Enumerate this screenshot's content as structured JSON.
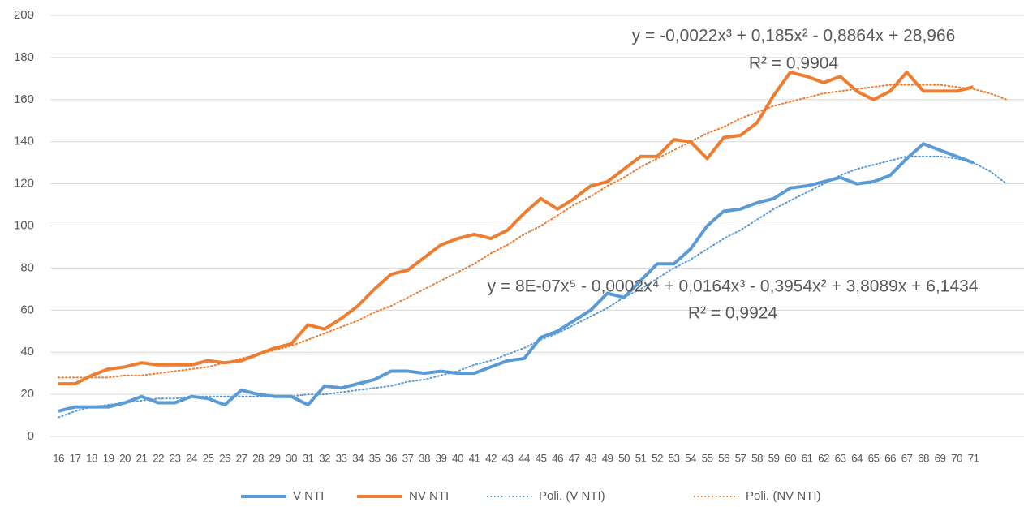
{
  "chart_data": {
    "type": "line",
    "categories": [
      "16",
      "17",
      "18",
      "19",
      "20",
      "21",
      "22",
      "23",
      "24",
      "25",
      "26",
      "27",
      "28",
      "29",
      "30",
      "31",
      "32",
      "33",
      "34",
      "35",
      "36",
      "37",
      "38",
      "39",
      "40",
      "41",
      "42",
      "43",
      "44",
      "45",
      "46",
      "47",
      "48",
      "49",
      "50",
      "51",
      "52",
      "53",
      "54",
      "55",
      "56",
      "57",
      "58",
      "59",
      "60",
      "61",
      "62",
      "63",
      "64",
      "65",
      "66",
      "67",
      "68",
      "69",
      "70",
      "71",
      null,
      null
    ],
    "series": [
      {
        "name": "V NTI",
        "color": "#5b9bd5",
        "style": "solid",
        "values": [
          12,
          14,
          14,
          14,
          16,
          19,
          16,
          16,
          19,
          18,
          15,
          22,
          20,
          19,
          19,
          15,
          24,
          23,
          25,
          27,
          31,
          31,
          30,
          31,
          30,
          30,
          33,
          36,
          37,
          47,
          50,
          55,
          60,
          68,
          66,
          74,
          82,
          82,
          89,
          100,
          107,
          108,
          111,
          113,
          118,
          119,
          121,
          123,
          120,
          121,
          124,
          132,
          139,
          136,
          133,
          130,
          null,
          null
        ]
      },
      {
        "name": "NV NTI",
        "color": "#ed7d31",
        "style": "solid",
        "values": [
          25,
          25,
          29,
          32,
          33,
          35,
          34,
          34,
          34,
          36,
          35,
          36,
          39,
          42,
          44,
          53,
          51,
          56,
          62,
          70,
          77,
          79,
          85,
          91,
          94,
          96,
          94,
          98,
          106,
          113,
          108,
          113,
          119,
          121,
          127,
          133,
          133,
          141,
          140,
          132,
          142,
          143,
          149,
          162,
          173,
          171,
          168,
          171,
          164,
          160,
          164,
          173,
          164,
          164,
          164,
          166,
          null,
          null
        ]
      },
      {
        "name": "Poli. (V NTI)",
        "color": "#5b9bd5",
        "style": "dotted",
        "values": [
          9,
          12,
          14,
          15,
          16,
          17,
          18,
          18,
          19,
          19,
          19,
          19,
          19,
          19,
          19,
          20,
          20,
          21,
          22,
          23,
          24,
          26,
          27,
          29,
          31,
          34,
          36,
          39,
          42,
          46,
          49,
          53,
          57,
          61,
          66,
          70,
          75,
          80,
          84,
          89,
          94,
          98,
          103,
          108,
          112,
          116,
          120,
          124,
          127,
          129,
          131,
          133,
          133,
          133,
          132,
          130,
          126,
          120
        ]
      },
      {
        "name": "Poli. (NV NTI)",
        "color": "#ed7d31",
        "style": "dotted",
        "values": [
          28,
          28,
          28,
          28,
          29,
          29,
          30,
          31,
          32,
          33,
          35,
          37,
          39,
          41,
          43,
          46,
          49,
          52,
          55,
          59,
          62,
          66,
          70,
          74,
          78,
          82,
          87,
          91,
          96,
          100,
          105,
          110,
          114,
          119,
          123,
          128,
          132,
          136,
          140,
          144,
          147,
          151,
          154,
          157,
          159,
          161,
          163,
          164,
          165,
          166,
          167,
          167,
          167,
          167,
          166,
          165,
          163,
          160
        ]
      }
    ],
    "annotations": [
      "y = -0,0022x³ + 0,185x² - 0,8864x + 28,966",
      "R² = 0,9904",
      "y = 8E-07x⁵ - 0,0002x⁴ + 0,0164x³ - 0,3954x² + 3,8089x + 6,1434",
      "R² = 0,9924"
    ],
    "ylim": [
      0,
      200
    ],
    "yticks": [
      0,
      20,
      40,
      60,
      80,
      100,
      120,
      140,
      160,
      180,
      200
    ],
    "grid": true,
    "legend": "bottom"
  }
}
